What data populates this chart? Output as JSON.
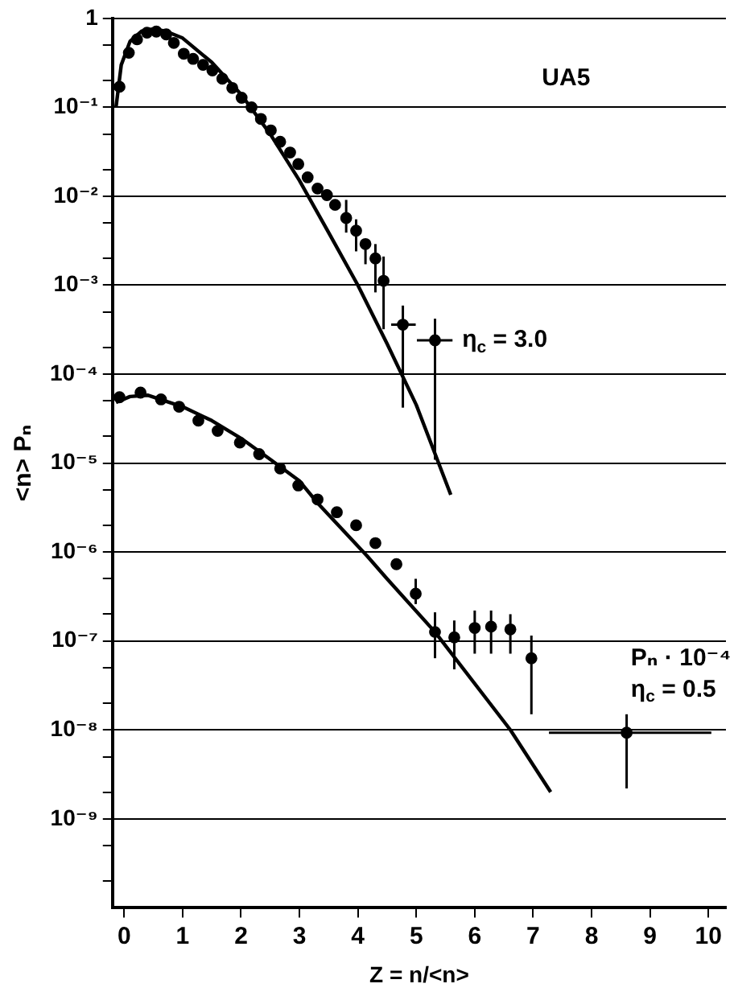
{
  "chart_data": {
    "type": "scatter",
    "xlabel": "Z = n/<n>",
    "ylabel": "<n> Pₙ",
    "log": "y",
    "grid": "y",
    "legend": false,
    "marker": "circle",
    "xlim": [
      -0.2,
      10.3
    ],
    "xticks": [
      0,
      1,
      2,
      3,
      4,
      5,
      6,
      7,
      8,
      9,
      10
    ],
    "ylim": [
      1e-10,
      1
    ],
    "yticks": [
      {
        "value": 1,
        "label": "1"
      },
      {
        "value": 0.5,
        "label": null
      },
      {
        "value": 0.2,
        "label": null
      },
      {
        "value": 0.1,
        "label": "10⁻¹"
      },
      {
        "value": 0.05,
        "label": null
      },
      {
        "value": 0.02,
        "label": null
      },
      {
        "value": 0.01,
        "label": "10⁻²"
      },
      {
        "value": 0.005,
        "label": null
      },
      {
        "value": 0.002,
        "label": null
      },
      {
        "value": 0.001,
        "label": "10⁻³"
      },
      {
        "value": 0.0005,
        "label": null
      },
      {
        "value": 0.0002,
        "label": null
      },
      {
        "value": 0.0001,
        "label": "10⁻⁴"
      },
      {
        "value": 5e-05,
        "label": null
      },
      {
        "value": 2e-05,
        "label": null
      },
      {
        "value": 1e-05,
        "label": "10⁻⁵"
      },
      {
        "value": 5e-06,
        "label": null
      },
      {
        "value": 2e-06,
        "label": null
      },
      {
        "value": 1e-06,
        "label": "10⁻⁶"
      },
      {
        "value": 5e-07,
        "label": null
      },
      {
        "value": 2e-07,
        "label": null
      },
      {
        "value": 1e-07,
        "label": "10⁻⁷"
      },
      {
        "value": 5e-08,
        "label": null
      },
      {
        "value": 2e-08,
        "label": null
      },
      {
        "value": 1e-08,
        "label": "10⁻⁸"
      },
      {
        "value": 5e-09,
        "label": null
      },
      {
        "value": 2e-09,
        "label": null
      },
      {
        "value": 1e-09,
        "label": "10⁻⁹"
      },
      {
        "value": 5e-10,
        "label": null
      },
      {
        "value": 2e-10,
        "label": null
      }
    ],
    "series": [
      {
        "color": "#000000",
        "x": [
          -0.08,
          0.08,
          0.22,
          0.39,
          0.55,
          0.72,
          0.85,
          1.02,
          1.18,
          1.35,
          1.51,
          1.68,
          1.85,
          2.01,
          2.18,
          2.34,
          2.51,
          2.67,
          2.84,
          2.98,
          3.14,
          3.31,
          3.47,
          3.61,
          3.8,
          3.97,
          4.13,
          4.3,
          4.44,
          4.77,
          5.32
        ],
        "values": [
          0.17,
          0.41,
          0.58,
          0.69,
          0.71,
          0.66,
          0.53,
          0.4,
          0.35,
          0.3,
          0.26,
          0.21,
          0.165,
          0.128,
          0.1,
          0.074,
          0.055,
          0.041,
          0.031,
          0.023,
          0.0163,
          0.0122,
          0.0103,
          0.008,
          0.0057,
          0.0041,
          0.0029,
          0.002,
          0.00112,
          0.00036,
          0.00024
        ],
        "errors": [
          null,
          null,
          null,
          null,
          null,
          null,
          null,
          null,
          null,
          null,
          null,
          null,
          null,
          null,
          null,
          null,
          null,
          null,
          null,
          null,
          null,
          null,
          null,
          null,
          [
            0.0039,
            0.0091
          ],
          [
            0.0024,
            0.0055
          ],
          [
            0.00172,
            0.0032
          ],
          [
            0.00083,
            0.0029
          ],
          [
            0.00032,
            0.0021
          ],
          [
            4.2e-05,
            0.00059
          ],
          [
            1.09e-05,
            0.00042
          ]
        ],
        "xerrors": [
          null,
          null,
          null,
          null,
          null,
          null,
          null,
          null,
          null,
          null,
          null,
          null,
          null,
          null,
          null,
          null,
          null,
          null,
          null,
          null,
          null,
          null,
          null,
          null,
          null,
          null,
          null,
          null,
          null,
          [
            4.57,
            4.99
          ],
          [
            5.01,
            5.62
          ]
        ]
      },
      {
        "type": "line",
        "color": "#000000",
        "marker": "none",
        "x": [
          -0.14,
          -0.05,
          0.1,
          0.3,
          0.5,
          0.7,
          1.0,
          1.5,
          2.0,
          2.5,
          3.0,
          3.5,
          4.0,
          4.5,
          5.0,
          5.59
        ],
        "values": [
          0.1,
          0.3,
          0.55,
          0.72,
          0.76,
          0.72,
          0.6,
          0.32,
          0.14,
          0.05,
          0.015,
          0.0039,
          0.001,
          0.00022,
          4.5e-05,
          4.4e-06
        ]
      },
      {
        "color": "#000000",
        "x": [
          -0.08,
          0.28,
          0.63,
          0.94,
          1.27,
          1.6,
          1.98,
          2.31,
          2.67,
          2.98,
          3.31,
          3.64,
          3.97,
          4.3,
          4.66,
          4.99,
          5.32,
          5.65,
          6.0,
          6.28,
          6.61,
          6.97,
          8.6
        ],
        "values": [
          5.5e-05,
          6.2e-05,
          5.2e-05,
          4.3e-05,
          3e-05,
          2.3e-05,
          1.7e-05,
          1.26e-05,
          8.7e-06,
          5.6e-06,
          3.9e-06,
          2.8e-06,
          2e-06,
          1.26e-06,
          7.3e-07,
          3.4e-07,
          1.26e-07,
          1.1e-07,
          1.4e-07,
          1.45e-07,
          1.35e-07,
          6.4e-08,
          9.3e-09
        ],
        "errors": [
          null,
          null,
          null,
          null,
          null,
          null,
          null,
          null,
          null,
          null,
          null,
          null,
          null,
          null,
          null,
          [
            2.6e-07,
            5e-07
          ],
          [
            6.4e-08,
            2.1e-07
          ],
          [
            4.8e-08,
            1.7e-07
          ],
          [
            7.2e-08,
            2.2e-07
          ],
          [
            7.2e-08,
            2.2e-07
          ],
          [
            7.2e-08,
            2e-07
          ],
          [
            1.5e-08,
            1.15e-07
          ],
          [
            2.2e-09,
            1.5e-08
          ]
        ],
        "xerrors": [
          null,
          null,
          null,
          null,
          null,
          null,
          null,
          null,
          null,
          null,
          null,
          null,
          null,
          null,
          null,
          null,
          null,
          null,
          null,
          null,
          null,
          null,
          [
            7.27,
            10.05
          ]
        ]
      },
      {
        "type": "line",
        "color": "#000000",
        "marker": "none",
        "x": [
          -0.14,
          0.1,
          0.4,
          1.0,
          1.5,
          2.0,
          2.5,
          3.0,
          3.32,
          4.16,
          4.5,
          5.32,
          6.61,
          7.3
        ],
        "values": [
          4.8e-05,
          5.6e-05,
          5.8e-05,
          4.3e-05,
          3e-05,
          1.9e-05,
          1.1e-05,
          6.3e-06,
          3.5e-06,
          9e-07,
          5e-07,
          1.26e-07,
          1e-08,
          2e-09
        ]
      }
    ],
    "annotations": [
      "UA5",
      "η$_{c}$ = 3.0",
      "Pₙ · 10⁻⁴",
      "η$_{c}$ = 0.5"
    ]
  }
}
